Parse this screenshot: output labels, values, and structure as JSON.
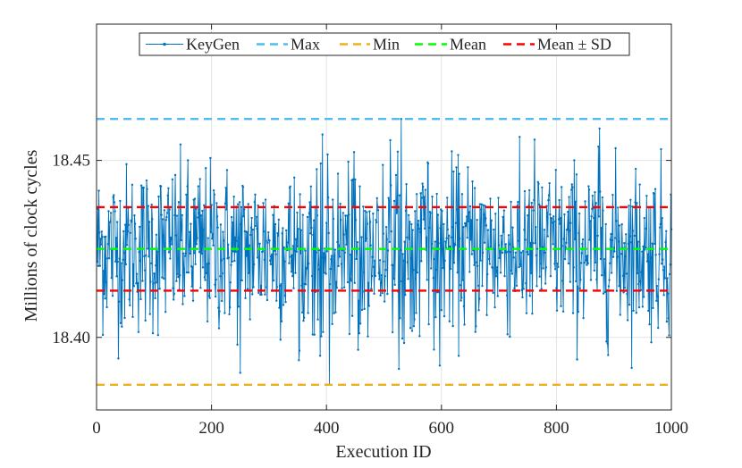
{
  "chart_data": {
    "type": "line",
    "title": "",
    "xlabel": "Execution ID",
    "ylabel": "Millions of clock cycles",
    "xlim": [
      0,
      1000
    ],
    "ylim": [
      18.3795,
      18.4885
    ],
    "grid": true,
    "legend_position": "top-center",
    "x_ticks": [
      0,
      200,
      400,
      600,
      800,
      1000
    ],
    "x_tick_labels": [
      "0",
      "200",
      "400",
      "600",
      "800",
      "1000"
    ],
    "y_ticks": [
      18.4,
      18.45
    ],
    "y_tick_labels": [
      "18.40",
      "18.45"
    ],
    "series": [
      {
        "name": "KeyGen",
        "color": "#0072BD",
        "style": "line-with-dots",
        "num_points": 1000,
        "x_start": 1,
        "x_end": 1000,
        "mean": 18.425,
        "std": 0.0118,
        "min": 18.3866,
        "max": 18.4617,
        "extreme_points": [
          {
            "x": 250,
            "y": 18.39
          },
          {
            "x": 405,
            "y": 18.3866
          },
          {
            "x": 530,
            "y": 18.4617
          },
          {
            "x": 875,
            "y": 18.459
          }
        ]
      },
      {
        "name": "Max",
        "color": "#4DBEEE",
        "style": "dashed",
        "value": 18.4617
      },
      {
        "name": "Min",
        "color": "#EDB120",
        "style": "dashed",
        "value": 18.3866
      },
      {
        "name": "Mean",
        "color": "#00FF00",
        "style": "dashed",
        "value": 18.425
      },
      {
        "name": "Mean ± SD",
        "color": "#FF0000",
        "style": "dashed",
        "values": [
          18.4132,
          18.4368
        ]
      }
    ],
    "legend": [
      {
        "label": "KeyGen",
        "color": "#0072BD",
        "style": "line-with-dots"
      },
      {
        "label": "Max",
        "color": "#4DBEEE",
        "style": "dashed"
      },
      {
        "label": "Min",
        "color": "#EDB120",
        "style": "dashed"
      },
      {
        "label": "Mean",
        "color": "#00FF00",
        "style": "dashed"
      },
      {
        "label": "Mean ± SD",
        "color": "#FF0000",
        "style": "dashed"
      }
    ]
  }
}
